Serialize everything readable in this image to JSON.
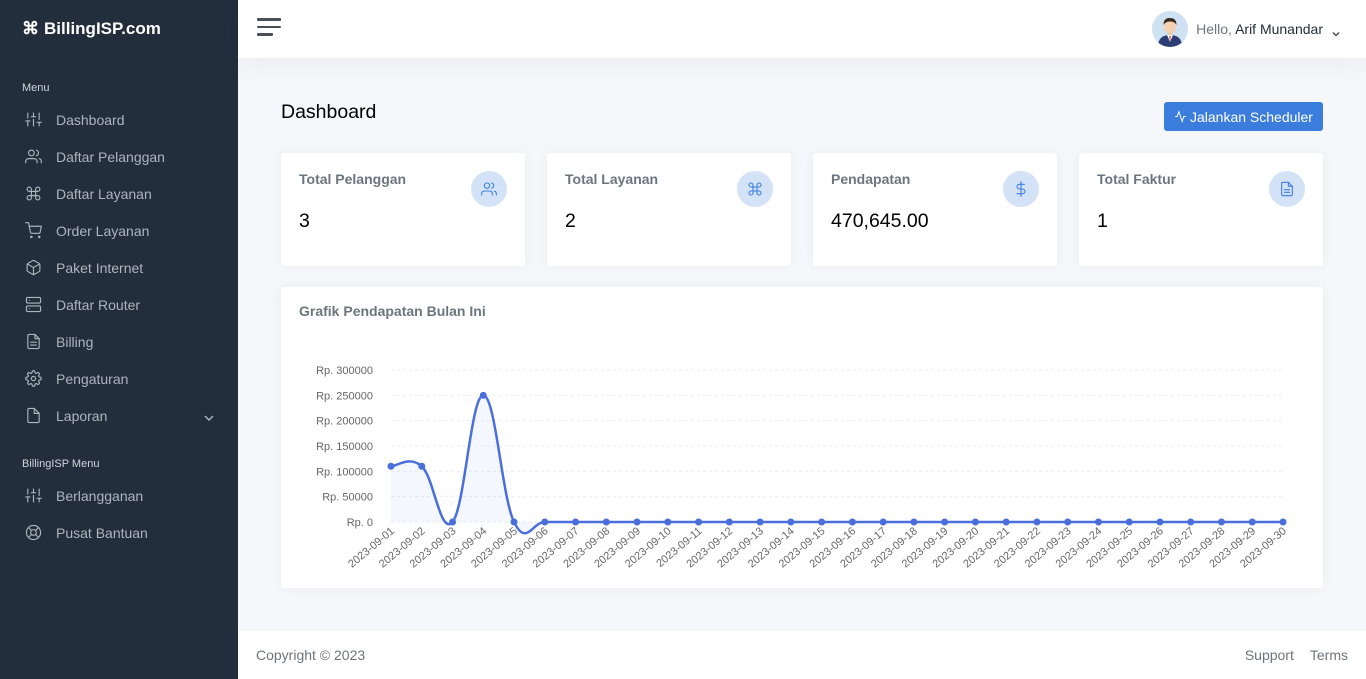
{
  "brand": {
    "name": "BillingISP.com",
    "icon": "command-icon"
  },
  "sidebar": {
    "menu_header": "Menu",
    "items": [
      {
        "label": "Dashboard",
        "icon": "sliders-icon"
      },
      {
        "label": "Daftar Pelanggan",
        "icon": "users-icon"
      },
      {
        "label": "Daftar Layanan",
        "icon": "command-icon"
      },
      {
        "label": "Order Layanan",
        "icon": "cart-icon"
      },
      {
        "label": "Paket Internet",
        "icon": "package-icon"
      },
      {
        "label": "Daftar Router",
        "icon": "server-icon"
      },
      {
        "label": "Billing",
        "icon": "file-text-icon"
      },
      {
        "label": "Pengaturan",
        "icon": "gear-icon"
      },
      {
        "label": "Laporan",
        "icon": "file-icon"
      }
    ],
    "menu2_header": "BillingISP Menu",
    "items2": [
      {
        "label": "Berlangganan",
        "icon": "sliders-icon"
      },
      {
        "label": "Pusat Bantuan",
        "icon": "lifebuoy-icon"
      }
    ]
  },
  "topbar": {
    "hello": "Hello,",
    "user_name": "Arif Munandar"
  },
  "main": {
    "title": "Dashboard",
    "scheduler_button": "Jalankan Scheduler",
    "stats": [
      {
        "label": "Total Pelanggan",
        "value": "3",
        "icon": "users-icon"
      },
      {
        "label": "Total Layanan",
        "value": "2",
        "icon": "command-icon"
      },
      {
        "label": "Pendapatan",
        "value": "470,645.00",
        "icon": "dollar-icon"
      },
      {
        "label": "Total Faktur",
        "value": "1",
        "icon": "file-text-icon"
      }
    ]
  },
  "chart_data": {
    "type": "line",
    "title": "Grafik Pendapatan Bulan Ini",
    "x": [
      "2023-09-01",
      "2023-09-02",
      "2023-09-03",
      "2023-09-04",
      "2023-09-05",
      "2023-09-06",
      "2023-09-07",
      "2023-09-08",
      "2023-09-09",
      "2023-09-10",
      "2023-09-11",
      "2023-09-12",
      "2023-09-13",
      "2023-09-14",
      "2023-09-15",
      "2023-09-16",
      "2023-09-17",
      "2023-09-18",
      "2023-09-19",
      "2023-09-20",
      "2023-09-21",
      "2023-09-22",
      "2023-09-23",
      "2023-09-24",
      "2023-09-25",
      "2023-09-26",
      "2023-09-27",
      "2023-09-28",
      "2023-09-29",
      "2023-09-30"
    ],
    "series": [
      {
        "values": [
          110000,
          110000,
          0,
          250000,
          0,
          0,
          0,
          0,
          0,
          0,
          0,
          0,
          0,
          0,
          0,
          0,
          0,
          0,
          0,
          0,
          0,
          0,
          0,
          0,
          0,
          0,
          0,
          0,
          0,
          0
        ]
      }
    ],
    "yticks": [
      "Rp. 0",
      "Rp. 50000",
      "Rp. 100000",
      "Rp. 150000",
      "Rp. 200000",
      "Rp. 250000",
      "Rp. 300000"
    ],
    "ylim": [
      0,
      300000
    ],
    "color": "#4a6fdc",
    "grid": true
  },
  "footer": {
    "copyright": "Copyright © 2023",
    "support": "Support",
    "terms": "Terms"
  }
}
